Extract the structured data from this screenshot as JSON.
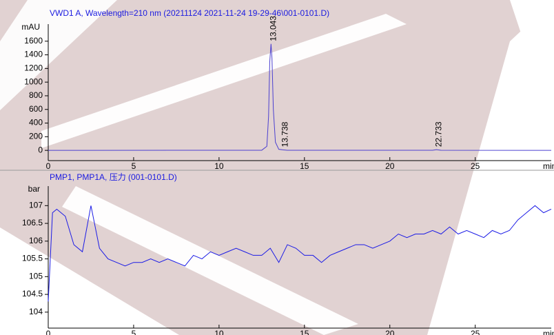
{
  "chart_data": [
    {
      "type": "line",
      "title": "VWD1 A, Wavelength=210 nm (20211124 2021-11-24 19-29-46\\001-0101.D)",
      "ylabel": "mAU",
      "xlabel": "min",
      "xlim": [
        0,
        29.45
      ],
      "xticks": [
        0,
        5,
        10,
        15,
        20,
        25
      ],
      "ylim": [
        -150,
        1850
      ],
      "yticks": [
        0,
        200,
        400,
        600,
        800,
        1000,
        1200,
        1400,
        1600
      ],
      "series": [
        {
          "color": "#4a3fd0",
          "x": [
            0,
            12.5,
            12.8,
            12.9,
            12.97,
            13.043,
            13.1,
            13.18,
            13.3,
            13.5,
            13.738,
            14,
            22.5,
            22.733,
            23,
            29.45
          ],
          "values": [
            0,
            2,
            60,
            500,
            1300,
            1560,
            1350,
            600,
            120,
            15,
            8,
            2,
            1,
            10,
            1,
            0
          ]
        }
      ],
      "peak_labels": [
        13.043,
        13.738,
        22.733
      ]
    },
    {
      "type": "line",
      "title": "PMP1, PMP1A, 压力   (001-0101.D)",
      "ylabel": "bar",
      "xlabel": "min",
      "xlim": [
        0,
        29.45
      ],
      "xticks": [
        0,
        5,
        10,
        15,
        20,
        25
      ],
      "ylim": [
        103.55,
        107.55
      ],
      "yticks": [
        104,
        104.5,
        105,
        105.5,
        106,
        106.5,
        107
      ],
      "series": [
        {
          "color": "#1a1ae6",
          "x": [
            0,
            0.25,
            0.5,
            1,
            1.5,
            2,
            2.5,
            3,
            3.5,
            4,
            4.5,
            5,
            5.5,
            6,
            6.5,
            7,
            7.5,
            8,
            8.5,
            9,
            9.5,
            10,
            10.5,
            11,
            11.5,
            12,
            12.5,
            13,
            13.5,
            14,
            14.5,
            15,
            15.5,
            16,
            16.5,
            17,
            17.5,
            18,
            18.5,
            19,
            19.5,
            20,
            20.5,
            21,
            21.5,
            22,
            22.5,
            23,
            23.5,
            24,
            24.5,
            25,
            25.5,
            26,
            26.5,
            27,
            27.5,
            28,
            28.5,
            29,
            29.45
          ],
          "values": [
            104.3,
            106.8,
            106.9,
            106.7,
            105.9,
            105.7,
            107.0,
            105.8,
            105.5,
            105.4,
            105.3,
            105.4,
            105.4,
            105.5,
            105.4,
            105.5,
            105.4,
            105.3,
            105.6,
            105.5,
            105.7,
            105.6,
            105.7,
            105.8,
            105.7,
            105.6,
            105.6,
            105.8,
            105.4,
            105.9,
            105.8,
            105.6,
            105.6,
            105.4,
            105.6,
            105.7,
            105.8,
            105.9,
            105.9,
            105.8,
            105.9,
            106.0,
            106.2,
            106.1,
            106.2,
            106.2,
            106.3,
            106.2,
            106.4,
            106.2,
            106.3,
            106.2,
            106.1,
            106.3,
            106.2,
            106.3,
            106.6,
            106.8,
            107.0,
            106.8,
            106.9
          ]
        }
      ]
    }
  ]
}
